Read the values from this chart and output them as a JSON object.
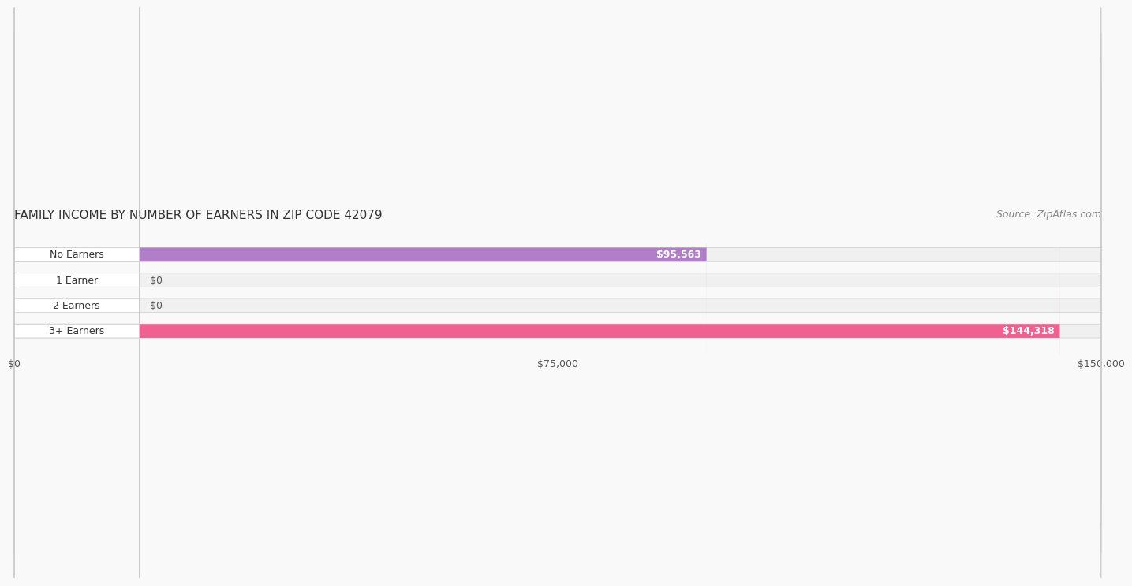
{
  "title": "FAMILY INCOME BY NUMBER OF EARNERS IN ZIP CODE 42079",
  "source": "Source: ZipAtlas.com",
  "categories": [
    "No Earners",
    "1 Earner",
    "2 Earners",
    "3+ Earners"
  ],
  "values": [
    95563,
    0,
    0,
    144318
  ],
  "bar_colors": [
    "#b07fc7",
    "#5bc8c8",
    "#a0a0d8",
    "#f06090"
  ],
  "bar_bg_color": "#f0f0f0",
  "label_bg_color": "#ffffff",
  "value_labels": [
    "$95,563",
    "$0",
    "$0",
    "$144,318"
  ],
  "xlim": [
    0,
    150000
  ],
  "xticks": [
    0,
    75000,
    150000
  ],
  "xticklabels": [
    "$0",
    "$75,000",
    "$150,000"
  ],
  "title_fontsize": 11,
  "source_fontsize": 9,
  "bar_label_fontsize": 9,
  "value_fontsize": 9,
  "background_color": "#f9f9f9",
  "bar_height": 0.55
}
